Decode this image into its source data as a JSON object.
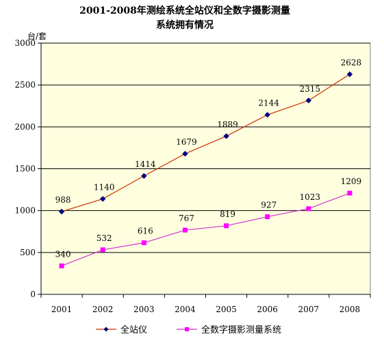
{
  "chart_data": {
    "type": "line",
    "title_lines": [
      "2001-2008年测绘系统全站仪和全数字摄影测量",
      "系统拥有情况"
    ],
    "ylabel": "台/套",
    "xlabel": "",
    "categories": [
      "2001",
      "2002",
      "2003",
      "2004",
      "2005",
      "2006",
      "2007",
      "2008"
    ],
    "ylim": [
      0,
      3000
    ],
    "yticks": [
      0,
      500,
      1000,
      1500,
      2000,
      2500,
      3000
    ],
    "grid": true,
    "legend_position": "bottom",
    "plot_background": "#ffffe0",
    "series": [
      {
        "name": "全站仪",
        "values": [
          988,
          1140,
          1414,
          1679,
          1889,
          2144,
          2315,
          2628
        ],
        "line_color": "#cc3300",
        "marker_color": "#000080",
        "marker": "diamond"
      },
      {
        "name": "全数字摄影测量系统",
        "values": [
          340,
          532,
          616,
          767,
          819,
          927,
          1023,
          1209
        ],
        "line_color": "#cc33cc",
        "marker_color": "#ff00ff",
        "marker": "square"
      }
    ]
  }
}
